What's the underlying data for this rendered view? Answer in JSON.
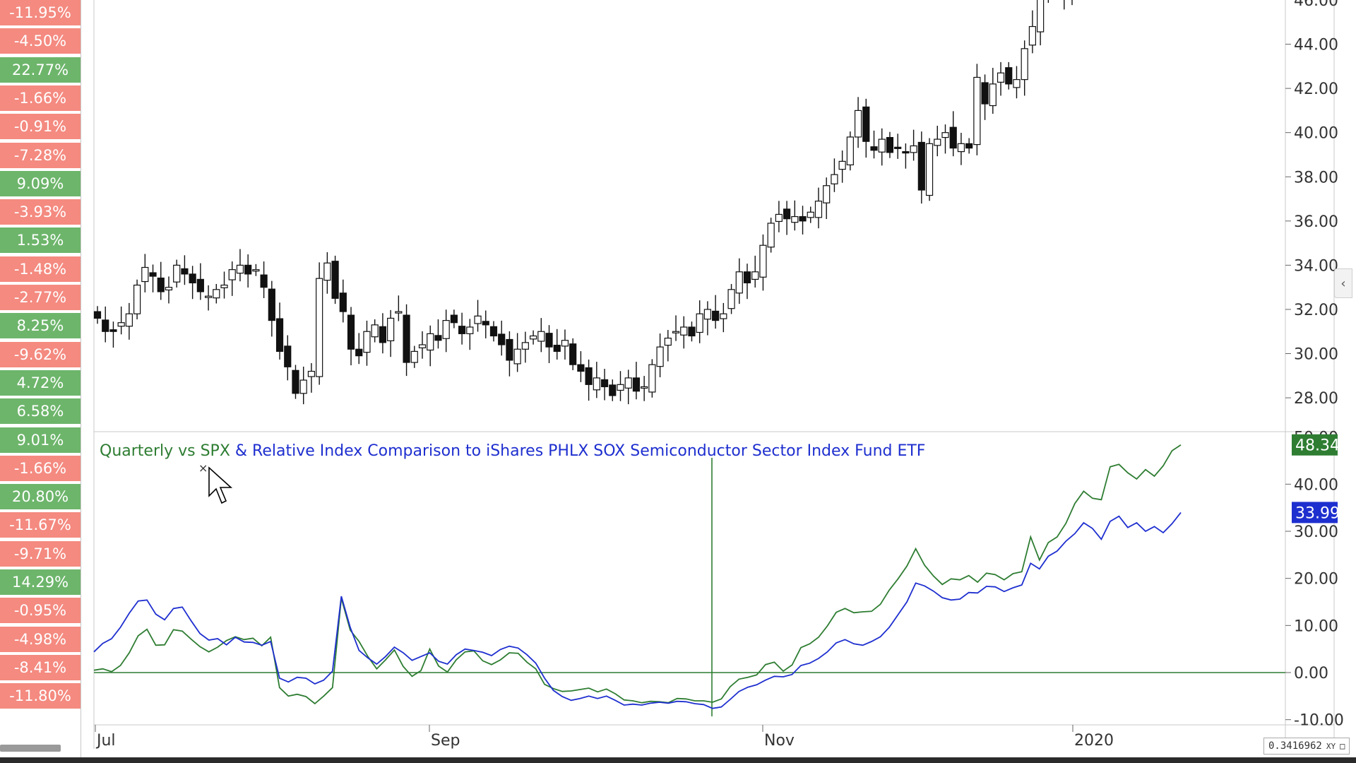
{
  "performance_list": [
    {
      "value": "-11.95%",
      "positive": false
    },
    {
      "value": "-4.50%",
      "positive": false
    },
    {
      "value": "22.77%",
      "positive": true
    },
    {
      "value": "-1.66%",
      "positive": false
    },
    {
      "value": "-0.91%",
      "positive": false
    },
    {
      "value": "-7.28%",
      "positive": false
    },
    {
      "value": "9.09%",
      "positive": true
    },
    {
      "value": "-3.93%",
      "positive": false
    },
    {
      "value": "1.53%",
      "positive": true
    },
    {
      "value": "-1.48%",
      "positive": false
    },
    {
      "value": "-2.77%",
      "positive": false
    },
    {
      "value": "8.25%",
      "positive": true
    },
    {
      "value": "-9.62%",
      "positive": false
    },
    {
      "value": "4.72%",
      "positive": true
    },
    {
      "value": "6.58%",
      "positive": true
    },
    {
      "value": "9.01%",
      "positive": true
    },
    {
      "value": "-1.66%",
      "positive": false
    },
    {
      "value": "20.80%",
      "positive": true
    },
    {
      "value": "-11.67%",
      "positive": false
    },
    {
      "value": "-9.71%",
      "positive": false
    },
    {
      "value": "14.29%",
      "positive": true
    },
    {
      "value": "-0.95%",
      "positive": false
    },
    {
      "value": "-4.98%",
      "positive": false
    },
    {
      "value": "-8.41%",
      "positive": false
    },
    {
      "value": "-11.80%",
      "positive": false
    }
  ],
  "colors": {
    "negative": "#f48a80",
    "positive": "#6db56b",
    "green_line": "#2e7d32",
    "blue_line": "#1e2fcf"
  },
  "footer": {
    "xy_value": "0.3416962",
    "xy_label": "XY"
  },
  "icons": {
    "collapse": "chevron-left-icon",
    "lock": "lock-icon",
    "cursor": "mouse-pointer-icon"
  },
  "chart_data": [
    {
      "type": "candlestick",
      "y_ticks": [
        "28.00",
        "30.00",
        "32.00",
        "34.00",
        "36.00",
        "38.00",
        "40.00",
        "42.00",
        "44.00"
      ],
      "ylim": [
        26.5,
        46
      ],
      "x_labels": [
        "Jul",
        "Sep",
        "Nov",
        "2020"
      ],
      "close": [
        31.6,
        31.0,
        31.0,
        31.4,
        31.8,
        33.1,
        33.9,
        33.5,
        32.8,
        33.0,
        34.0,
        33.6,
        33.2,
        32.8,
        32.6,
        32.9,
        33.1,
        33.8,
        34.0,
        33.6,
        33.8,
        33.0,
        31.5,
        30.1,
        29.4,
        28.2,
        28.8,
        29.2,
        33.4,
        34.1,
        32.5,
        31.9,
        30.2,
        29.9,
        31.0,
        31.3,
        30.5,
        31.6,
        31.9,
        29.6,
        30.1,
        30.4,
        30.9,
        30.6,
        31.5,
        31.4,
        30.9,
        31.2,
        31.7,
        31.3,
        30.8,
        30.4,
        29.7,
        30.2,
        30.5,
        30.8,
        31.0,
        30.3,
        30.1,
        30.6,
        29.5,
        29.2,
        28.6,
        28.9,
        28.5,
        28.1,
        28.6,
        28.9,
        28.3,
        28.5,
        29.5,
        30.3,
        30.7,
        31.0,
        31.2,
        30.8,
        31.8,
        32.0,
        31.5,
        31.8,
        32.9,
        33.7,
        33.2,
        33.7,
        34.9,
        35.9,
        36.3,
        36.1,
        36.2,
        36.0,
        36.4,
        36.9,
        37.6,
        38.1,
        38.7,
        39.8,
        41.0,
        39.6,
        39.2,
        39.7,
        39.1,
        39.3,
        39.1,
        39.4,
        37.4,
        39.5,
        39.7,
        40.0,
        39.3,
        39.5,
        39.3,
        42.5,
        41.3,
        42.2,
        42.7,
        42.2,
        42.4,
        43.8,
        44.8,
        46.2,
        47.0,
        47.8,
        46.3,
        46.8
      ],
      "last_visible_value": "46.00"
    },
    {
      "type": "line",
      "title_parts": [
        "Quarterly vs SPX ",
        "& Relative Index Comparison to iShares PHLX SOX Semiconductor Sector Index Fund ETF"
      ],
      "y_ticks": [
        "-10.00",
        "0.00",
        "10.00",
        "20.00",
        "30.00",
        "40.00"
      ],
      "top_tick_partial": "50.00",
      "ylim": [
        -10.5,
        51
      ],
      "x_labels": [
        "Jul",
        "Sep",
        "Nov",
        "2020"
      ],
      "series": [
        {
          "color": "#2e7d32",
          "last_label": "48.34",
          "values": [
            0.5,
            0.8,
            0.2,
            1.5,
            4.2,
            7.8,
            9.2,
            5.8,
            5.9,
            9.1,
            8.8,
            7.1,
            5.5,
            4.4,
            5.4,
            6.8,
            7.6,
            7.0,
            7.3,
            5.7,
            7.5,
            -3.2,
            -5.0,
            -4.6,
            -5.1,
            -6.6,
            -5.0,
            -3.2,
            15.8,
            9.0,
            6.6,
            3.4,
            0.8,
            2.7,
            4.8,
            1.3,
            -0.8,
            0.4,
            5.0,
            1.4,
            0.1,
            2.7,
            4.4,
            4.6,
            2.5,
            1.7,
            2.7,
            4.2,
            4.1,
            2.2,
            0.8,
            -2.5,
            -3.4,
            -4.0,
            -3.9,
            -3.6,
            -3.3,
            -4.1,
            -3.5,
            -4.5,
            -5.8,
            -6.0,
            -6.4,
            -6.1,
            -6.2,
            -6.4,
            -5.5,
            -5.6,
            -6.0,
            -6.0,
            -6.3,
            -5.6,
            -3.0,
            -1.4,
            -1.0,
            -0.5,
            1.7,
            2.2,
            0.3,
            1.6,
            5.3,
            6.1,
            7.5,
            9.9,
            12.8,
            13.6,
            12.7,
            12.9,
            13.0,
            14.5,
            17.5,
            19.9,
            22.6,
            26.3,
            22.8,
            20.5,
            18.7,
            19.9,
            19.7,
            20.6,
            19.2,
            21.1,
            20.8,
            19.7,
            21.0,
            21.4,
            28.8,
            23.9,
            27.6,
            28.8,
            31.7,
            35.9,
            38.5,
            37.0,
            36.7,
            43.7,
            44.2,
            42.4,
            41.1,
            43.1,
            41.7,
            43.9,
            47.1,
            48.34
          ]
        },
        {
          "color": "#1e2fcf",
          "last_label": "33.99",
          "values": [
            4.4,
            6.2,
            7.2,
            9.6,
            12.6,
            15.2,
            15.4,
            12.4,
            11.2,
            13.6,
            13.9,
            11.0,
            8.3,
            6.9,
            7.2,
            5.9,
            7.5,
            6.5,
            6.4,
            5.8,
            6.6,
            -1.2,
            -2.0,
            -1.0,
            -1.2,
            -2.4,
            -1.6,
            0.3,
            16.2,
            9.6,
            4.7,
            3.1,
            1.8,
            3.4,
            5.4,
            4.2,
            2.6,
            3.4,
            4.2,
            2.4,
            1.8,
            3.8,
            5.0,
            4.7,
            4.3,
            3.6,
            4.9,
            5.6,
            5.2,
            3.8,
            2.0,
            -1.2,
            -3.8,
            -5.1,
            -5.9,
            -5.5,
            -5.0,
            -5.5,
            -5.0,
            -5.9,
            -6.9,
            -6.7,
            -6.9,
            -6.5,
            -6.3,
            -6.5,
            -6.1,
            -6.2,
            -6.6,
            -6.8,
            -7.6,
            -7.3,
            -5.7,
            -4.0,
            -3.1,
            -2.6,
            -1.6,
            -0.8,
            -0.9,
            -0.4,
            1.5,
            2.0,
            3.0,
            4.4,
            6.3,
            7.0,
            6.1,
            5.8,
            6.6,
            7.6,
            9.6,
            12.3,
            15.0,
            19.0,
            18.4,
            17.3,
            15.9,
            15.4,
            15.6,
            17.0,
            16.9,
            18.3,
            18.2,
            17.2,
            18.0,
            18.6,
            23.2,
            22.0,
            24.7,
            25.8,
            27.9,
            29.5,
            31.8,
            30.6,
            28.3,
            32.1,
            33.2,
            30.8,
            31.8,
            30.0,
            31.0,
            29.7,
            31.6,
            33.99
          ]
        }
      ],
      "reference_line": 0
    }
  ]
}
